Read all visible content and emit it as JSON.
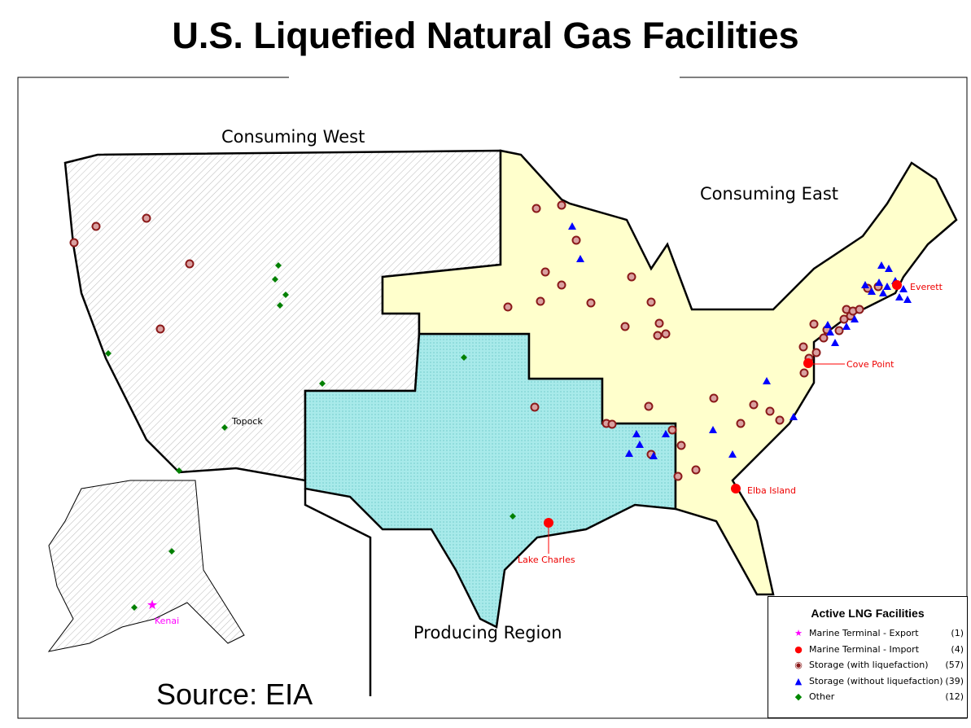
{
  "title": "U.S. Liquefied Natural Gas Facilities",
  "regions": {
    "west": "Consuming West",
    "east": "Consuming East",
    "producing": "Producing Region"
  },
  "sites": {
    "everett": "Everett",
    "cove_point": "Cove Point",
    "elba_island": "Elba Island",
    "lake_charles": "Lake Charles",
    "topock": "Topock",
    "kenai": "Kenai"
  },
  "source": "Source: EIA",
  "colors": {
    "west": "#f2f2f2",
    "east": "#ffffcc",
    "producing": "#99e6e6",
    "export": "#ff00ff",
    "import": "#ff0000",
    "storage_liq": "#8b1a1a",
    "storage_noliq": "#0000ff",
    "other": "#008000"
  },
  "legend": {
    "title": "Active LNG Facilities",
    "items": [
      {
        "icon": "star-icon",
        "label": "Marine Terminal - Export",
        "count": "(1)"
      },
      {
        "icon": "red-dot-icon",
        "label": "Marine Terminal - Import",
        "count": "(4)"
      },
      {
        "icon": "ringed-dot-icon",
        "label": "Storage (with liquefaction)",
        "count": "(57)"
      },
      {
        "icon": "triangle-icon",
        "label": "Storage (without liquefaction)",
        "count": "(39)"
      },
      {
        "icon": "diamond-icon",
        "label": "Other",
        "count": "(12)"
      }
    ]
  }
}
